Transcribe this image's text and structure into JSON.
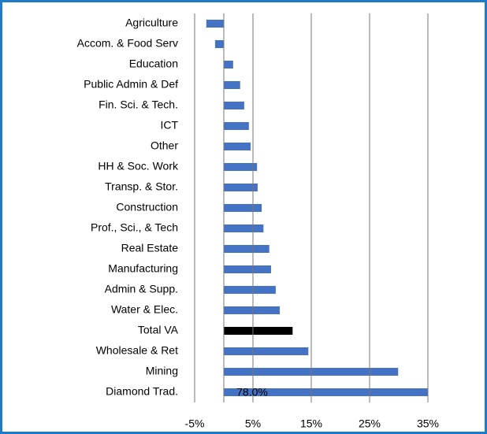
{
  "chart_data": {
    "type": "bar",
    "orientation": "horizontal",
    "categories": [
      "Agriculture",
      "Accom. & Food Serv",
      "Education",
      "Public Admin & Def",
      "Fin.  Sci. & Tech.",
      "ICT",
      "Other",
      "HH & Soc. Work",
      "Transp. & Stor.",
      "Construction",
      "Prof., Sci., & Tech",
      "Real Estate",
      "Manufacturing",
      "Admin & Supp.",
      "Water & Elec.",
      "Total VA",
      "Wholesale & Ret",
      "Mining",
      "Diamond Trad."
    ],
    "values": [
      -3.0,
      -1.5,
      1.6,
      2.8,
      3.5,
      4.3,
      4.6,
      5.7,
      5.8,
      6.5,
      6.8,
      7.8,
      8.1,
      8.9,
      9.6,
      11.8,
      14.5,
      29.9,
      78.0
    ],
    "value_labels": [
      null,
      null,
      null,
      null,
      null,
      null,
      null,
      null,
      null,
      null,
      null,
      null,
      null,
      null,
      null,
      null,
      null,
      null,
      "78.0%"
    ],
    "colors": [
      "#4472c4",
      "#4472c4",
      "#4472c4",
      "#4472c4",
      "#4472c4",
      "#4472c4",
      "#4472c4",
      "#4472c4",
      "#4472c4",
      "#4472c4",
      "#4472c4",
      "#4472c4",
      "#4472c4",
      "#4472c4",
      "#4472c4",
      "#000000",
      "#4472c4",
      "#4472c4",
      "#4472c4"
    ],
    "xlim": [
      -5,
      35
    ],
    "xticks": [
      {
        "value": -5,
        "label": "-5%"
      },
      {
        "value": 5,
        "label": "5%"
      },
      {
        "value": 15,
        "label": "15%"
      },
      {
        "value": 25,
        "label": "25%"
      },
      {
        "value": 35,
        "label": "35%"
      }
    ],
    "grid": true
  }
}
